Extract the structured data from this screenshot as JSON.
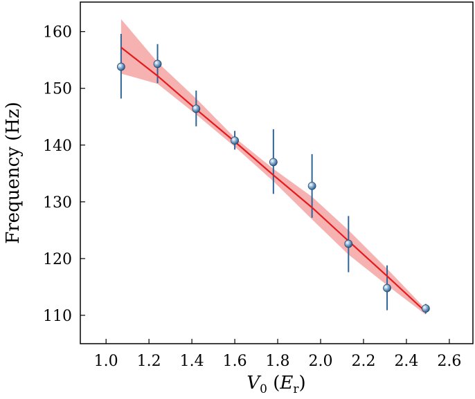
{
  "chart_data": {
    "type": "scatter",
    "xlabel": "V0 (Er)",
    "ylabel": "Frequency (Hz)",
    "xlim": [
      0.88,
      2.71
    ],
    "ylim": [
      105,
      165.2
    ],
    "x_ticks": [
      "1.0",
      "1.2",
      "1.4",
      "1.6",
      "1.8",
      "2.0",
      "2.2",
      "2.4",
      "2.6"
    ],
    "y_ticks": [
      "110",
      "120",
      "130",
      "140",
      "150",
      "160"
    ],
    "grid": false,
    "series": [
      {
        "kind": "measured",
        "points": [
          {
            "x": 1.07,
            "y": 153.8,
            "err_low": 148.2,
            "err_high": 159.6
          },
          {
            "x": 1.24,
            "y": 154.3,
            "err_low": 150.9,
            "err_high": 157.8
          },
          {
            "x": 1.42,
            "y": 146.4,
            "err_low": 143.3,
            "err_high": 149.6
          },
          {
            "x": 1.6,
            "y": 140.8,
            "err_low": 139.2,
            "err_high": 142.5
          },
          {
            "x": 1.78,
            "y": 137.0,
            "err_low": 131.4,
            "err_high": 142.8
          },
          {
            "x": 1.96,
            "y": 132.8,
            "err_low": 127.2,
            "err_high": 138.4
          },
          {
            "x": 2.13,
            "y": 122.6,
            "err_low": 117.6,
            "err_high": 127.5
          },
          {
            "x": 2.31,
            "y": 114.8,
            "err_low": 110.9,
            "err_high": 118.8
          },
          {
            "x": 2.49,
            "y": 111.2,
            "err_low": 110.3,
            "err_high": 112.0
          }
        ]
      },
      {
        "kind": "fit",
        "x": [
          1.07,
          1.24,
          1.42,
          1.6,
          1.78,
          1.96,
          2.13,
          2.31,
          2.49
        ],
        "y": [
          157.2,
          152.2,
          146.3,
          140.6,
          134.7,
          129.0,
          123.1,
          116.9,
          110.6
        ],
        "lower": [
          152.6,
          150.8,
          145.4,
          139.7,
          133.6,
          126.9,
          120.7,
          115.3,
          110.1
        ],
        "upper": [
          162.2,
          154.6,
          148.2,
          141.3,
          135.8,
          130.9,
          125.0,
          118.2,
          111.1
        ]
      }
    ],
    "colors": {
      "points": "#3a6fa1",
      "errorbar": "#2f6496",
      "fit_line": "#e41a1c",
      "band": "#f4a3a3"
    }
  }
}
